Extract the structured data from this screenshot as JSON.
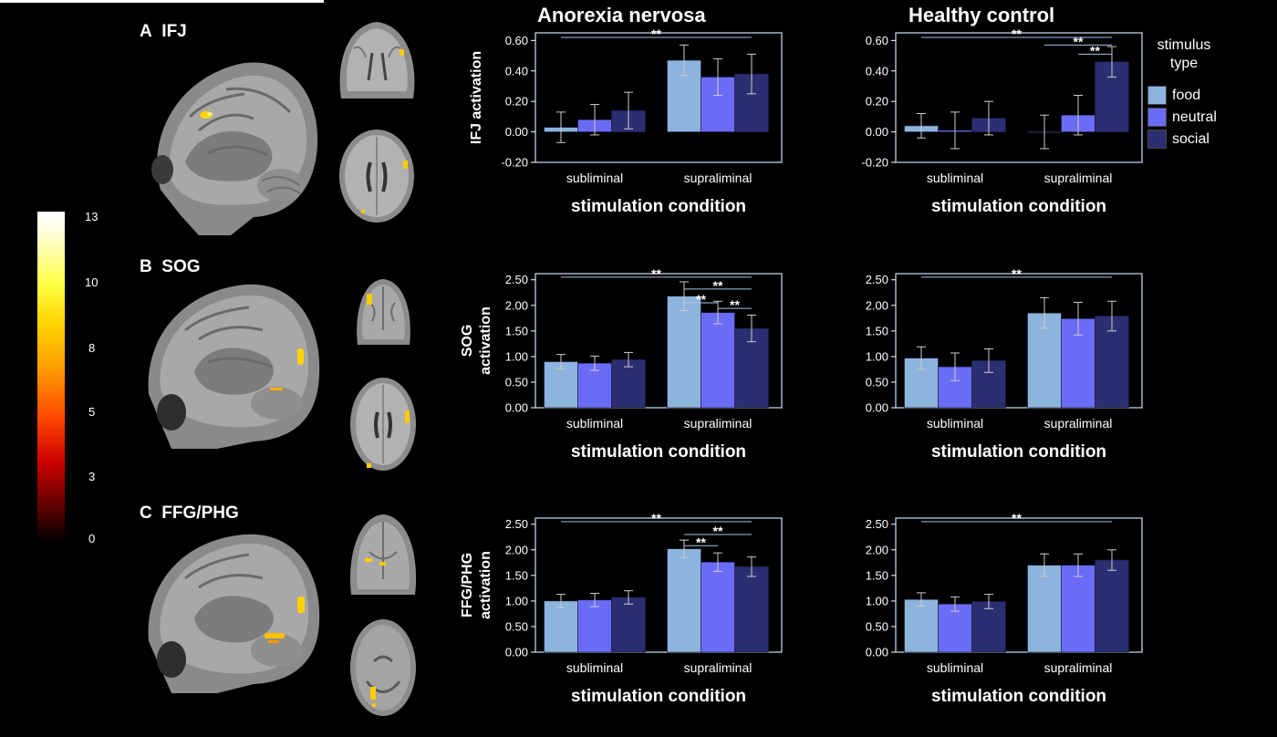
{
  "columns": {
    "left": "Anorexia nervosa",
    "right": "Healthy control"
  },
  "panels": [
    {
      "letter": "A",
      "region": "IFJ"
    },
    {
      "letter": "B",
      "region": "SOG"
    },
    {
      "letter": "C",
      "region": "FFG/PHG"
    }
  ],
  "colorbar": {
    "ticks": [
      "13",
      "10",
      "8",
      "5",
      "3",
      "0"
    ]
  },
  "legend": {
    "title_line1": "stimulus",
    "title_line2": "type",
    "items": [
      {
        "label": "food",
        "color": "#8cb4dc"
      },
      {
        "label": "neutral",
        "color": "#6a6cf5"
      },
      {
        "label": "social",
        "color": "#2b2f72"
      }
    ]
  },
  "colors": {
    "axis": "#ffffff",
    "sig_line": "#a9c3e0",
    "error_bar": "#cccccc"
  },
  "chart_data": [
    {
      "id": "A-AN",
      "type": "bar",
      "categories": [
        "subliminal",
        "supraliminal"
      ],
      "xlabel": "stimulation condition",
      "ylabel_lines": [
        "IFJ activation"
      ],
      "yticks": [
        "0.60",
        "0.40",
        "0.20",
        "0.00",
        "-0.20"
      ],
      "ylim": [
        -0.2,
        0.65
      ],
      "series": [
        {
          "name": "food",
          "values": [
            0.03,
            0.47
          ],
          "err": [
            0.1,
            0.1
          ]
        },
        {
          "name": "neutral",
          "values": [
            0.08,
            0.36
          ],
          "err": [
            0.1,
            0.12
          ]
        },
        {
          "name": "social",
          "values": [
            0.14,
            0.38
          ],
          "err": [
            0.12,
            0.13
          ]
        }
      ],
      "significance": [
        {
          "from": [
            0,
            0
          ],
          "to": [
            1,
            2
          ],
          "level": 0.62,
          "label": "**"
        }
      ]
    },
    {
      "id": "A-HC",
      "type": "bar",
      "categories": [
        "subliminal",
        "supraliminal"
      ],
      "xlabel": "stimulation condition",
      "ylabel_lines": [],
      "yticks": [
        "0.60",
        "0.40",
        "0.20",
        "0.00",
        "-0.20"
      ],
      "ylim": [
        -0.2,
        0.65
      ],
      "series": [
        {
          "name": "food",
          "values": [
            0.04,
            0.0
          ],
          "err": [
            0.08,
            0.11
          ]
        },
        {
          "name": "neutral",
          "values": [
            0.01,
            0.11
          ],
          "err": [
            0.12,
            0.13
          ]
        },
        {
          "name": "social",
          "values": [
            0.09,
            0.46
          ],
          "err": [
            0.11,
            0.1
          ]
        }
      ],
      "significance": [
        {
          "from": [
            0,
            0
          ],
          "to": [
            1,
            2
          ],
          "level": 0.62,
          "label": "**"
        },
        {
          "from": [
            1,
            0
          ],
          "to": [
            1,
            2
          ],
          "level": 0.57,
          "label": "**"
        },
        {
          "from": [
            1,
            1
          ],
          "to": [
            1,
            2
          ],
          "level": 0.51,
          "label": "**"
        }
      ]
    },
    {
      "id": "B-AN",
      "type": "bar",
      "categories": [
        "subliminal",
        "supraliminal"
      ],
      "xlabel": "stimulation condition",
      "ylabel_lines": [
        "SOG",
        "activation"
      ],
      "yticks": [
        "2.50",
        "2.00",
        "1.50",
        "1.00",
        "0.50",
        "0.00"
      ],
      "ylim": [
        0,
        2.62
      ],
      "series": [
        {
          "name": "food",
          "values": [
            0.9,
            2.18
          ],
          "err": [
            0.14,
            0.28
          ]
        },
        {
          "name": "neutral",
          "values": [
            0.87,
            1.86
          ],
          "err": [
            0.14,
            0.22
          ]
        },
        {
          "name": "social",
          "values": [
            0.94,
            1.55
          ],
          "err": [
            0.14,
            0.26
          ]
        }
      ],
      "significance": [
        {
          "from": [
            0,
            0
          ],
          "to": [
            1,
            2
          ],
          "level": 2.55,
          "label": "**"
        },
        {
          "from": [
            1,
            0
          ],
          "to": [
            1,
            2
          ],
          "level": 2.32,
          "label": "**"
        },
        {
          "from": [
            1,
            0
          ],
          "to": [
            1,
            1
          ],
          "level": 2.05,
          "label": "**"
        },
        {
          "from": [
            1,
            1
          ],
          "to": [
            1,
            2
          ],
          "level": 1.94,
          "label": "**"
        }
      ]
    },
    {
      "id": "B-HC",
      "type": "bar",
      "categories": [
        "subliminal",
        "supraliminal"
      ],
      "xlabel": "stimulation condition",
      "ylabel_lines": [],
      "yticks": [
        "2.50",
        "2.00",
        "1.50",
        "1.00",
        "0.50",
        "0.00"
      ],
      "ylim": [
        0,
        2.62
      ],
      "series": [
        {
          "name": "food",
          "values": [
            0.97,
            1.85
          ],
          "err": [
            0.22,
            0.3
          ]
        },
        {
          "name": "neutral",
          "values": [
            0.8,
            1.74
          ],
          "err": [
            0.27,
            0.32
          ]
        },
        {
          "name": "social",
          "values": [
            0.92,
            1.79
          ],
          "err": [
            0.23,
            0.29
          ]
        }
      ],
      "significance": [
        {
          "from": [
            0,
            0
          ],
          "to": [
            1,
            2
          ],
          "level": 2.55,
          "label": "**"
        }
      ]
    },
    {
      "id": "C-AN",
      "type": "bar",
      "categories": [
        "subliminal",
        "supraliminal"
      ],
      "xlabel": "stimulation condition",
      "ylabel_lines": [
        "FFG/PHG",
        "activation"
      ],
      "yticks": [
        "2.50",
        "2.00",
        "1.50",
        "1.00",
        "0.50",
        "0.00"
      ],
      "ylim": [
        0,
        2.62
      ],
      "series": [
        {
          "name": "food",
          "values": [
            1.0,
            2.02
          ],
          "err": [
            0.13,
            0.17
          ]
        },
        {
          "name": "neutral",
          "values": [
            1.02,
            1.76
          ],
          "err": [
            0.13,
            0.18
          ]
        },
        {
          "name": "social",
          "values": [
            1.07,
            1.67
          ],
          "err": [
            0.13,
            0.19
          ]
        }
      ],
      "significance": [
        {
          "from": [
            0,
            0
          ],
          "to": [
            1,
            2
          ],
          "level": 2.55,
          "label": "**"
        },
        {
          "from": [
            1,
            0
          ],
          "to": [
            1,
            2
          ],
          "level": 2.3,
          "label": "**"
        },
        {
          "from": [
            1,
            0
          ],
          "to": [
            1,
            1
          ],
          "level": 2.08,
          "label": "**"
        }
      ]
    },
    {
      "id": "C-HC",
      "type": "bar",
      "categories": [
        "subliminal",
        "supraliminal"
      ],
      "xlabel": "stimulation condition",
      "ylabel_lines": [],
      "yticks": [
        "2.50",
        "2.00",
        "1.50",
        "1.00",
        "0.50",
        "0.00"
      ],
      "ylim": [
        0,
        2.62
      ],
      "series": [
        {
          "name": "food",
          "values": [
            1.03,
            1.7
          ],
          "err": [
            0.13,
            0.22
          ]
        },
        {
          "name": "neutral",
          "values": [
            0.94,
            1.7
          ],
          "err": [
            0.14,
            0.22
          ]
        },
        {
          "name": "social",
          "values": [
            0.99,
            1.8
          ],
          "err": [
            0.14,
            0.2
          ]
        }
      ],
      "significance": [
        {
          "from": [
            0,
            0
          ],
          "to": [
            1,
            2
          ],
          "level": 2.55,
          "label": "**"
        }
      ]
    }
  ]
}
